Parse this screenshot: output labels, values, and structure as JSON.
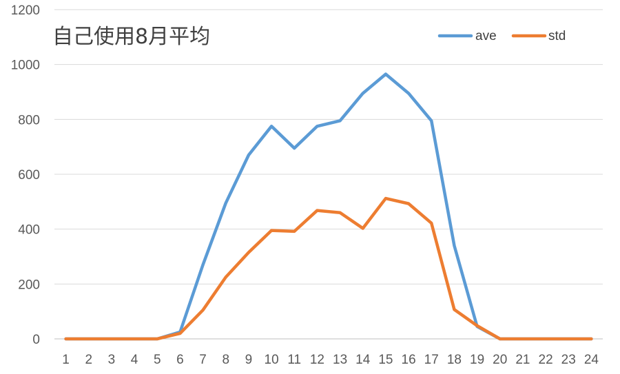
{
  "chart_data": {
    "type": "line",
    "title": "自己使用8月平均",
    "xlabel": "",
    "ylabel": "",
    "categories": [
      "1",
      "2",
      "3",
      "4",
      "5",
      "6",
      "7",
      "8",
      "9",
      "10",
      "11",
      "12",
      "13",
      "14",
      "15",
      "16",
      "17",
      "18",
      "19",
      "20",
      "21",
      "22",
      "23",
      "24"
    ],
    "ylim": [
      0,
      1200
    ],
    "yticks": [
      "0",
      "200",
      "400",
      "600",
      "800",
      "1000",
      "1200"
    ],
    "grid": true,
    "legend_position": "top-right",
    "series": [
      {
        "name": "ave",
        "color": "#5B9BD5",
        "values": [
          0,
          0,
          0,
          0,
          0,
          25,
          270,
          495,
          670,
          775,
          695,
          775,
          795,
          895,
          965,
          895,
          795,
          340,
          45,
          0,
          0,
          0,
          0,
          0
        ]
      },
      {
        "name": "std",
        "color": "#ED7D31",
        "values": [
          0,
          0,
          0,
          0,
          0,
          20,
          105,
          225,
          315,
          395,
          392,
          468,
          460,
          403,
          512,
          493,
          422,
          107,
          48,
          0,
          0,
          0,
          0,
          0
        ]
      }
    ]
  }
}
